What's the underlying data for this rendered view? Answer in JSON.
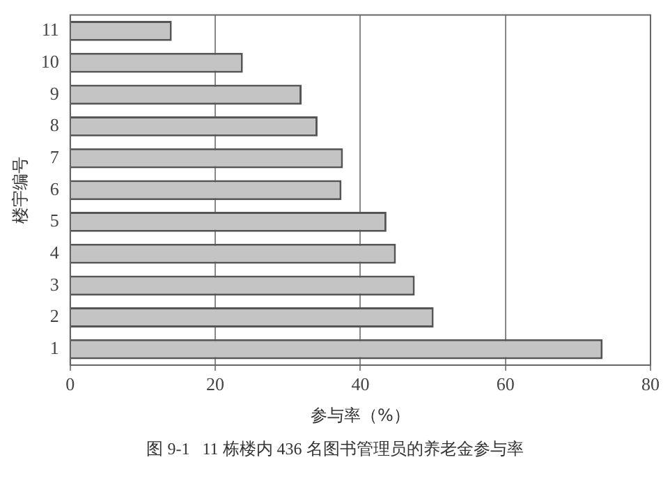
{
  "chart_data": {
    "type": "bar",
    "orientation": "horizontal",
    "ylabel": "楼宇编号",
    "xlabel": "参与率（%）",
    "annotations": [
      "图 9-1   11 栋楼内 436 名图书管理员的养老金参与率"
    ],
    "categories": [
      "11",
      "10",
      "9",
      "8",
      "7",
      "6",
      "5",
      "4",
      "3",
      "2",
      "1"
    ],
    "values": [
      14,
      23.8,
      31.9,
      34.1,
      37.6,
      37.4,
      43.6,
      44.9,
      47.5,
      50.1,
      73.4
    ],
    "color": "#c4c4c4",
    "xlim": [
      0,
      80
    ],
    "xticks": [
      0,
      20,
      40,
      60,
      80
    ],
    "grid": "x",
    "legend": false
  }
}
